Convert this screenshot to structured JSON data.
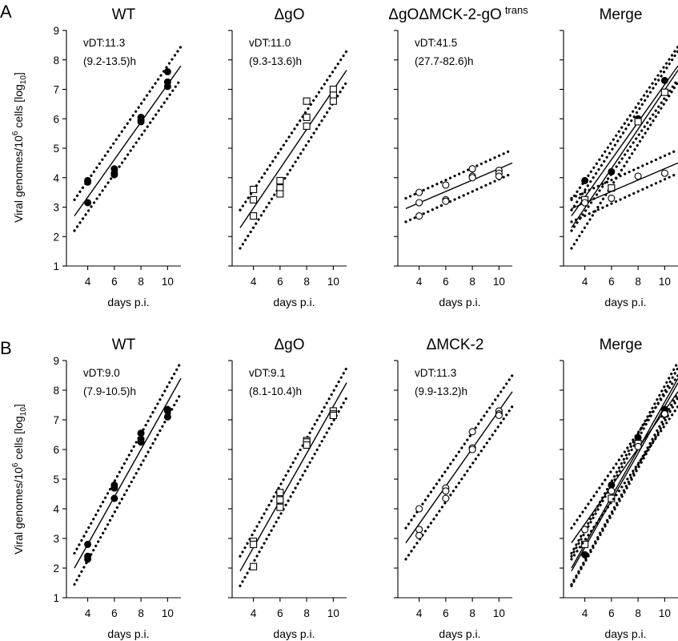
{
  "figure": {
    "rows": [
      {
        "letter": "A",
        "ylabel": "Viral genomes/10",
        "ylabel_sup": "6",
        "ylabel_tail": " cells [log",
        "ylabel_sub": "10",
        "ylabel_end": "]"
      },
      {
        "letter": "B",
        "ylabel": "Viral genomes/10",
        "ylabel_sup": "6",
        "ylabel_tail": " cells [log",
        "ylabel_sub": "10",
        "ylabel_end": "]"
      }
    ]
  },
  "chart_data": [
    {
      "type": "scatter",
      "row": 0,
      "col": 0,
      "title": "WT",
      "title_sup": "",
      "xlabel": "days p.i.",
      "xticks": [
        4,
        6,
        8,
        10
      ],
      "xlim": [
        2.4,
        11
      ],
      "ylim": [
        1,
        9
      ],
      "yticks": [
        1,
        2,
        3,
        4,
        5,
        6,
        7,
        8,
        9
      ],
      "annotation": [
        "vDT:11.3",
        "(9.2-13.5)h"
      ],
      "series": [
        {
          "marker": "filled-circle",
          "points": [
            [
              4,
              3.85
            ],
            [
              4,
              3.9
            ],
            [
              4,
              3.15
            ],
            [
              6,
              4.3
            ],
            [
              6,
              4.15
            ],
            [
              6,
              4.1
            ],
            [
              8,
              6.05
            ],
            [
              8,
              5.95
            ],
            [
              8,
              5.9
            ],
            [
              10,
              7.6
            ],
            [
              10,
              7.25
            ],
            [
              10,
              7.1
            ]
          ],
          "fit": [
            [
              3,
              2.7
            ],
            [
              11,
              7.8
            ]
          ],
          "ci_upper": [
            [
              3,
              3.25
            ],
            [
              11,
              8.45
            ]
          ],
          "ci_lower": [
            [
              3,
              2.2
            ],
            [
              11,
              7.35
            ]
          ]
        }
      ]
    },
    {
      "type": "scatter",
      "row": 0,
      "col": 1,
      "title": "ΔgO",
      "title_sup": "",
      "xlabel": "days p.i.",
      "xticks": [
        4,
        6,
        8,
        10
      ],
      "xlim": [
        2.4,
        11
      ],
      "ylim": [
        1,
        9
      ],
      "annotation": [
        "vDT:11.0",
        "(9.3-13.6)h"
      ],
      "series": [
        {
          "marker": "open-square",
          "points": [
            [
              4,
              3.6
            ],
            [
              4,
              3.25
            ],
            [
              4,
              2.7
            ],
            [
              6,
              3.9
            ],
            [
              6,
              3.65
            ],
            [
              6,
              3.45
            ],
            [
              8,
              6.6
            ],
            [
              8,
              6.05
            ],
            [
              8,
              5.75
            ],
            [
              10,
              7.0
            ],
            [
              10,
              6.8
            ],
            [
              10,
              6.6
            ]
          ],
          "fit": [
            [
              3,
              2.3
            ],
            [
              11,
              7.65
            ]
          ],
          "ci_upper": [
            [
              3,
              2.9
            ],
            [
              11,
              8.3
            ]
          ],
          "ci_lower": [
            [
              3,
              1.6
            ],
            [
              11,
              7.25
            ]
          ]
        }
      ]
    },
    {
      "type": "scatter",
      "row": 0,
      "col": 2,
      "title": "ΔgOΔMCK-2-gO",
      "title_sup": "trans",
      "xlabel": "days p.i.",
      "xticks": [
        4,
        6,
        8,
        10
      ],
      "xlim": [
        2.4,
        11
      ],
      "ylim": [
        1,
        9
      ],
      "annotation": [
        "vDT:41.5",
        "(27.7-82.6)h"
      ],
      "series": [
        {
          "marker": "open-circle",
          "points": [
            [
              4,
              3.5
            ],
            [
              4,
              3.15
            ],
            [
              4,
              2.7
            ],
            [
              6,
              3.75
            ],
            [
              6,
              3.25
            ],
            [
              6,
              3.2
            ],
            [
              8,
              4.3
            ],
            [
              8,
              4.05
            ],
            [
              8,
              4.0
            ],
            [
              10,
              4.25
            ],
            [
              10,
              4.15
            ],
            [
              10,
              4.05
            ]
          ],
          "fit": [
            [
              3,
              2.95
            ],
            [
              11,
              4.5
            ]
          ],
          "ci_upper": [
            [
              3,
              3.3
            ],
            [
              11,
              4.95
            ]
          ],
          "ci_lower": [
            [
              3,
              2.5
            ],
            [
              11,
              4.15
            ]
          ]
        }
      ]
    },
    {
      "type": "scatter",
      "row": 0,
      "col": 3,
      "title": "Merge",
      "title_sup": "",
      "xlabel": "days p.i.",
      "xticks": [
        4,
        6,
        8,
        10
      ],
      "xlim": [
        2.4,
        11
      ],
      "ylim": [
        1,
        9
      ],
      "annotation": [],
      "series": [
        {
          "marker": "filled-circle",
          "points": [
            [
              4,
              3.9
            ],
            [
              6,
              4.2
            ],
            [
              8,
              6.0
            ],
            [
              10,
              7.3
            ]
          ],
          "fit": [
            [
              3,
              2.7
            ],
            [
              11,
              7.8
            ]
          ],
          "ci_upper": [
            [
              3,
              3.25
            ],
            [
              11,
              8.45
            ]
          ],
          "ci_lower": [
            [
              3,
              2.2
            ],
            [
              11,
              7.35
            ]
          ]
        },
        {
          "marker": "open-square",
          "points": [
            [
              4,
              3.25
            ],
            [
              6,
              3.65
            ],
            [
              8,
              5.9
            ],
            [
              10,
              6.9
            ]
          ],
          "fit": [
            [
              3,
              2.3
            ],
            [
              11,
              7.65
            ]
          ],
          "ci_upper": [
            [
              3,
              2.9
            ],
            [
              11,
              8.3
            ]
          ],
          "ci_lower": [
            [
              3,
              1.6
            ],
            [
              11,
              7.25
            ]
          ]
        },
        {
          "marker": "open-circle",
          "points": [
            [
              4,
              3.15
            ],
            [
              6,
              3.3
            ],
            [
              8,
              4.05
            ],
            [
              10,
              4.15
            ]
          ],
          "fit": [
            [
              3,
              2.95
            ],
            [
              11,
              4.5
            ]
          ],
          "ci_upper": [
            [
              3,
              3.3
            ],
            [
              11,
              4.95
            ]
          ],
          "ci_lower": [
            [
              3,
              2.5
            ],
            [
              11,
              4.15
            ]
          ]
        }
      ]
    },
    {
      "type": "scatter",
      "row": 1,
      "col": 0,
      "title": "WT",
      "title_sup": "",
      "xlabel": "days p.i.",
      "xticks": [
        4,
        6,
        8,
        10
      ],
      "xlim": [
        2.4,
        11
      ],
      "ylim": [
        1,
        9
      ],
      "yticks": [
        1,
        2,
        3,
        4,
        5,
        6,
        7,
        8,
        9
      ],
      "annotation": [
        "vDT:9.0",
        "(7.9-10.5)h"
      ],
      "series": [
        {
          "marker": "filled-circle",
          "points": [
            [
              4,
              2.8
            ],
            [
              4,
              2.4
            ],
            [
              4,
              2.3
            ],
            [
              6,
              4.8
            ],
            [
              6,
              4.7
            ],
            [
              6,
              4.35
            ],
            [
              8,
              6.55
            ],
            [
              8,
              6.35
            ],
            [
              8,
              6.25
            ],
            [
              10,
              7.35
            ],
            [
              10,
              7.3
            ],
            [
              10,
              7.1
            ]
          ],
          "fit": [
            [
              3,
              2.0
            ],
            [
              11,
              8.4
            ]
          ],
          "ci_upper": [
            [
              3,
              2.5
            ],
            [
              11,
              8.95
            ]
          ],
          "ci_lower": [
            [
              3,
              1.45
            ],
            [
              11,
              7.9
            ]
          ]
        }
      ]
    },
    {
      "type": "scatter",
      "row": 1,
      "col": 1,
      "title": "ΔgO",
      "title_sup": "",
      "xlabel": "days p.i.",
      "xticks": [
        4,
        6,
        8,
        10
      ],
      "xlim": [
        2.4,
        11
      ],
      "ylim": [
        1,
        9
      ],
      "annotation": [
        "vDT:9.1",
        "(8.1-10.4)h"
      ],
      "series": [
        {
          "marker": "open-square",
          "points": [
            [
              4,
              2.9
            ],
            [
              4,
              2.8
            ],
            [
              4,
              2.05
            ],
            [
              6,
              4.55
            ],
            [
              6,
              4.3
            ],
            [
              6,
              4.05
            ],
            [
              8,
              6.3
            ],
            [
              8,
              6.25
            ],
            [
              8,
              6.15
            ],
            [
              10,
              7.3
            ],
            [
              10,
              7.2
            ],
            [
              10,
              7.15
            ]
          ],
          "fit": [
            [
              3,
              1.9
            ],
            [
              11,
              8.25
            ]
          ],
          "ci_upper": [
            [
              3,
              2.4
            ],
            [
              11,
              8.75
            ]
          ],
          "ci_lower": [
            [
              3,
              1.4
            ],
            [
              11,
              7.75
            ]
          ]
        }
      ]
    },
    {
      "type": "scatter",
      "row": 1,
      "col": 2,
      "title": "ΔMCK-2",
      "title_sup": "",
      "xlabel": "days p.i.",
      "xticks": [
        4,
        6,
        8,
        10
      ],
      "xlim": [
        2.4,
        11
      ],
      "ylim": [
        1,
        9
      ],
      "annotation": [
        "vDT:11.3",
        "(9.9-13.2)h"
      ],
      "series": [
        {
          "marker": "open-circle",
          "points": [
            [
              4,
              4.0
            ],
            [
              4,
              3.3
            ],
            [
              4,
              3.1
            ],
            [
              6,
              4.7
            ],
            [
              6,
              4.6
            ],
            [
              6,
              4.35
            ],
            [
              8,
              6.6
            ],
            [
              8,
              6.05
            ],
            [
              8,
              6.0
            ],
            [
              10,
              7.3
            ],
            [
              10,
              7.2
            ],
            [
              10,
              7.15
            ]
          ],
          "fit": [
            [
              3,
              2.85
            ],
            [
              11,
              7.95
            ]
          ],
          "ci_upper": [
            [
              3,
              3.35
            ],
            [
              11,
              8.5
            ]
          ],
          "ci_lower": [
            [
              3,
              2.3
            ],
            [
              11,
              7.45
            ]
          ]
        }
      ]
    },
    {
      "type": "scatter",
      "row": 1,
      "col": 3,
      "title": "Merge",
      "title_sup": "",
      "xlabel": "days p.i.",
      "xticks": [
        4,
        6,
        8,
        10
      ],
      "xlim": [
        2.4,
        11
      ],
      "ylim": [
        1,
        9
      ],
      "annotation": [],
      "series": [
        {
          "marker": "filled-circle",
          "points": [
            [
              4,
              2.45
            ],
            [
              6,
              4.8
            ],
            [
              8,
              6.4
            ],
            [
              10,
              7.35
            ]
          ],
          "fit": [
            [
              3,
              2.0
            ],
            [
              11,
              8.4
            ]
          ],
          "ci_upper": [
            [
              3,
              2.5
            ],
            [
              11,
              8.95
            ]
          ],
          "ci_lower": [
            [
              3,
              1.45
            ],
            [
              11,
              7.9
            ]
          ]
        },
        {
          "marker": "open-square",
          "points": [
            [
              4,
              2.8
            ],
            [
              6,
              4.35
            ],
            [
              8,
              6.2
            ],
            [
              10,
              7.2
            ]
          ],
          "fit": [
            [
              3,
              1.9
            ],
            [
              11,
              8.25
            ]
          ],
          "ci_upper": [
            [
              3,
              2.4
            ],
            [
              11,
              8.75
            ]
          ],
          "ci_lower": [
            [
              3,
              1.4
            ],
            [
              11,
              7.75
            ]
          ]
        },
        {
          "marker": "open-circle",
          "points": [
            [
              4,
              3.3
            ],
            [
              6,
              4.6
            ],
            [
              8,
              6.1
            ],
            [
              10,
              7.2
            ]
          ],
          "fit": [
            [
              3,
              2.85
            ],
            [
              11,
              7.95
            ]
          ],
          "ci_upper": [
            [
              3,
              3.35
            ],
            [
              11,
              8.5
            ]
          ],
          "ci_lower": [
            [
              3,
              2.3
            ],
            [
              11,
              7.45
            ]
          ]
        }
      ]
    }
  ]
}
